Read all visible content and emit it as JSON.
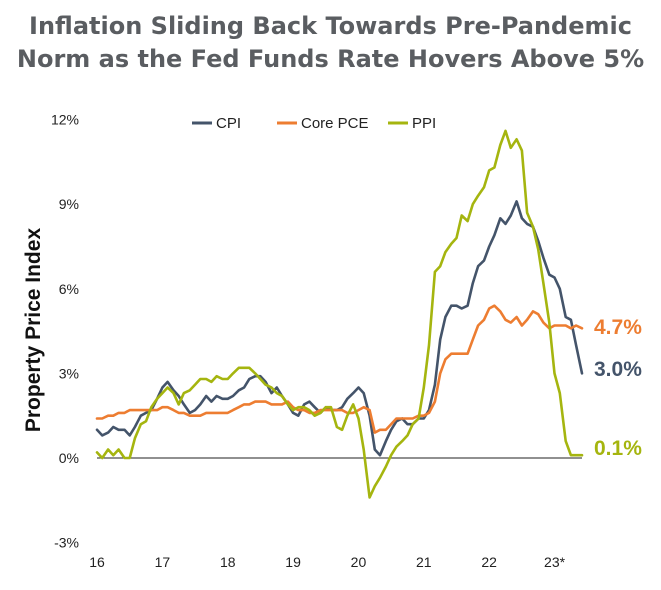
{
  "title_line1": "Inflation Sliding Back Towards Pre-Pandemic",
  "title_line2": "Norm as the Fed Funds Rate Hovers Above 5%",
  "colors": {
    "title": "#5a5d61",
    "cpi": "#44546a",
    "core_pce": "#ed7d31",
    "ppi": "#a5b50f"
  },
  "chart_data": {
    "type": "line",
    "ylabel": "Property Price Index",
    "ylim": [
      -3,
      12
    ],
    "y_ticks": [
      "-3%",
      "0%",
      "3%",
      "6%",
      "9%",
      "12%"
    ],
    "y_tick_values": [
      -3,
      0,
      3,
      6,
      9,
      12
    ],
    "x_ticks": [
      "16",
      "17",
      "18",
      "19",
      "20",
      "21",
      "22",
      "23*"
    ],
    "x_tick_values": [
      2016,
      2017,
      2018,
      2019,
      2020,
      2021,
      2022,
      2023
    ],
    "xlim": [
      2016,
      2023.42
    ],
    "grid": false,
    "legend_position": "top",
    "series": [
      {
        "name": "CPI",
        "color": "#44546a",
        "end_label": "3.0%",
        "x": [
          2016.0,
          2016.08,
          2016.17,
          2016.25,
          2016.33,
          2016.42,
          2016.5,
          2016.58,
          2016.67,
          2016.75,
          2016.83,
          2016.92,
          2017.0,
          2017.08,
          2017.17,
          2017.25,
          2017.33,
          2017.42,
          2017.5,
          2017.58,
          2017.67,
          2017.75,
          2017.83,
          2017.92,
          2018.0,
          2018.08,
          2018.17,
          2018.25,
          2018.33,
          2018.42,
          2018.5,
          2018.58,
          2018.67,
          2018.75,
          2018.83,
          2018.92,
          2019.0,
          2019.08,
          2019.17,
          2019.25,
          2019.33,
          2019.42,
          2019.5,
          2019.58,
          2019.67,
          2019.75,
          2019.83,
          2019.92,
          2020.0,
          2020.08,
          2020.17,
          2020.25,
          2020.33,
          2020.42,
          2020.5,
          2020.58,
          2020.67,
          2020.75,
          2020.83,
          2020.92,
          2021.0,
          2021.08,
          2021.17,
          2021.25,
          2021.33,
          2021.42,
          2021.5,
          2021.58,
          2021.67,
          2021.75,
          2021.83,
          2021.92,
          2022.0,
          2022.08,
          2022.17,
          2022.25,
          2022.33,
          2022.42,
          2022.5,
          2022.58,
          2022.67,
          2022.75,
          2022.83,
          2022.92,
          2023.0,
          2023.08,
          2023.17,
          2023.25,
          2023.33,
          2023.42
        ],
        "y": [
          1.0,
          0.8,
          0.9,
          1.1,
          1.0,
          1.0,
          0.8,
          1.1,
          1.5,
          1.6,
          1.7,
          2.1,
          2.5,
          2.7,
          2.4,
          2.2,
          1.9,
          1.6,
          1.7,
          1.9,
          2.2,
          2.0,
          2.2,
          2.1,
          2.1,
          2.2,
          2.4,
          2.5,
          2.8,
          2.9,
          2.9,
          2.7,
          2.3,
          2.5,
          2.2,
          1.9,
          1.6,
          1.5,
          1.9,
          2.0,
          1.8,
          1.6,
          1.8,
          1.7,
          1.7,
          1.8,
          2.1,
          2.3,
          2.5,
          2.3,
          1.5,
          0.3,
          0.1,
          0.6,
          1.0,
          1.3,
          1.4,
          1.2,
          1.2,
          1.4,
          1.4,
          1.7,
          2.6,
          4.2,
          5.0,
          5.4,
          5.4,
          5.3,
          5.4,
          6.2,
          6.8,
          7.0,
          7.5,
          7.9,
          8.5,
          8.3,
          8.6,
          9.1,
          8.5,
          8.3,
          8.2,
          7.7,
          7.1,
          6.5,
          6.4,
          6.0,
          5.0,
          4.9,
          4.0,
          3.0
        ]
      },
      {
        "name": "Core PCE",
        "color": "#ed7d31",
        "end_label": "4.7%",
        "x": [
          2016.0,
          2016.08,
          2016.17,
          2016.25,
          2016.33,
          2016.42,
          2016.5,
          2016.58,
          2016.67,
          2016.75,
          2016.83,
          2016.92,
          2017.0,
          2017.08,
          2017.17,
          2017.25,
          2017.33,
          2017.42,
          2017.5,
          2017.58,
          2017.67,
          2017.75,
          2017.83,
          2017.92,
          2018.0,
          2018.08,
          2018.17,
          2018.25,
          2018.33,
          2018.42,
          2018.5,
          2018.58,
          2018.67,
          2018.75,
          2018.83,
          2018.92,
          2019.0,
          2019.08,
          2019.17,
          2019.25,
          2019.33,
          2019.42,
          2019.5,
          2019.58,
          2019.67,
          2019.75,
          2019.83,
          2019.92,
          2020.0,
          2020.08,
          2020.17,
          2020.25,
          2020.33,
          2020.42,
          2020.5,
          2020.58,
          2020.67,
          2020.75,
          2020.83,
          2020.92,
          2021.0,
          2021.08,
          2021.17,
          2021.25,
          2021.33,
          2021.42,
          2021.5,
          2021.58,
          2021.67,
          2021.75,
          2021.83,
          2021.92,
          2022.0,
          2022.08,
          2022.17,
          2022.25,
          2022.33,
          2022.42,
          2022.5,
          2022.58,
          2022.67,
          2022.75,
          2022.83,
          2022.92,
          2023.0,
          2023.08,
          2023.17,
          2023.25,
          2023.33,
          2023.42
        ],
        "y": [
          1.4,
          1.4,
          1.5,
          1.5,
          1.6,
          1.6,
          1.7,
          1.7,
          1.7,
          1.7,
          1.7,
          1.7,
          1.8,
          1.8,
          1.7,
          1.6,
          1.6,
          1.5,
          1.5,
          1.5,
          1.6,
          1.6,
          1.6,
          1.6,
          1.6,
          1.7,
          1.8,
          1.9,
          1.9,
          2.0,
          2.0,
          2.0,
          1.9,
          1.9,
          1.9,
          2.0,
          1.8,
          1.7,
          1.7,
          1.6,
          1.6,
          1.7,
          1.7,
          1.7,
          1.7,
          1.7,
          1.6,
          1.6,
          1.7,
          1.8,
          1.7,
          0.9,
          1.0,
          1.0,
          1.2,
          1.4,
          1.4,
          1.4,
          1.4,
          1.5,
          1.5,
          1.6,
          2.0,
          3.0,
          3.5,
          3.7,
          3.7,
          3.7,
          3.7,
          4.2,
          4.7,
          4.9,
          5.3,
          5.4,
          5.2,
          4.9,
          4.8,
          5.0,
          4.7,
          4.9,
          5.2,
          5.1,
          4.8,
          4.6,
          4.7,
          4.7,
          4.7,
          4.6,
          4.7,
          4.6
        ]
      },
      {
        "name": "PPI",
        "color": "#a5b50f",
        "end_label": "0.1%",
        "x": [
          2016.0,
          2016.08,
          2016.17,
          2016.25,
          2016.33,
          2016.42,
          2016.5,
          2016.58,
          2016.67,
          2016.75,
          2016.83,
          2016.92,
          2017.0,
          2017.08,
          2017.17,
          2017.25,
          2017.33,
          2017.42,
          2017.5,
          2017.58,
          2017.67,
          2017.75,
          2017.83,
          2017.92,
          2018.0,
          2018.08,
          2018.17,
          2018.25,
          2018.33,
          2018.42,
          2018.5,
          2018.58,
          2018.67,
          2018.75,
          2018.83,
          2018.92,
          2019.0,
          2019.08,
          2019.17,
          2019.25,
          2019.33,
          2019.42,
          2019.5,
          2019.58,
          2019.67,
          2019.75,
          2019.83,
          2019.92,
          2020.0,
          2020.08,
          2020.17,
          2020.25,
          2020.33,
          2020.42,
          2020.5,
          2020.58,
          2020.67,
          2020.75,
          2020.83,
          2020.92,
          2021.0,
          2021.08,
          2021.17,
          2021.25,
          2021.33,
          2021.42,
          2021.5,
          2021.58,
          2021.67,
          2021.75,
          2021.83,
          2021.92,
          2022.0,
          2022.08,
          2022.17,
          2022.25,
          2022.33,
          2022.42,
          2022.5,
          2022.58,
          2022.67,
          2022.75,
          2022.83,
          2022.92,
          2023.0,
          2023.08,
          2023.17,
          2023.25,
          2023.33,
          2023.42
        ],
        "y": [
          0.2,
          0.0,
          0.3,
          0.1,
          0.3,
          0.0,
          0.0,
          0.7,
          1.2,
          1.3,
          1.8,
          2.1,
          2.3,
          2.5,
          2.3,
          1.9,
          2.3,
          2.4,
          2.6,
          2.8,
          2.8,
          2.7,
          2.9,
          2.8,
          2.8,
          3.0,
          3.2,
          3.2,
          3.2,
          3.0,
          2.8,
          2.6,
          2.5,
          2.3,
          2.2,
          1.9,
          1.7,
          1.8,
          1.8,
          1.7,
          1.5,
          1.6,
          1.8,
          1.8,
          1.1,
          1.0,
          1.5,
          1.9,
          1.4,
          0.3,
          -1.4,
          -1.0,
          -0.7,
          -0.3,
          0.1,
          0.4,
          0.6,
          0.8,
          1.2,
          1.4,
          2.5,
          4.0,
          6.6,
          6.8,
          7.3,
          7.6,
          7.8,
          8.6,
          8.4,
          9.0,
          9.3,
          9.6,
          10.2,
          10.3,
          11.1,
          11.6,
          11.0,
          11.3,
          10.9,
          8.7,
          8.2,
          7.4,
          6.2,
          4.8,
          3.0,
          2.3,
          0.6,
          0.1,
          0.1,
          0.1
        ]
      }
    ]
  }
}
